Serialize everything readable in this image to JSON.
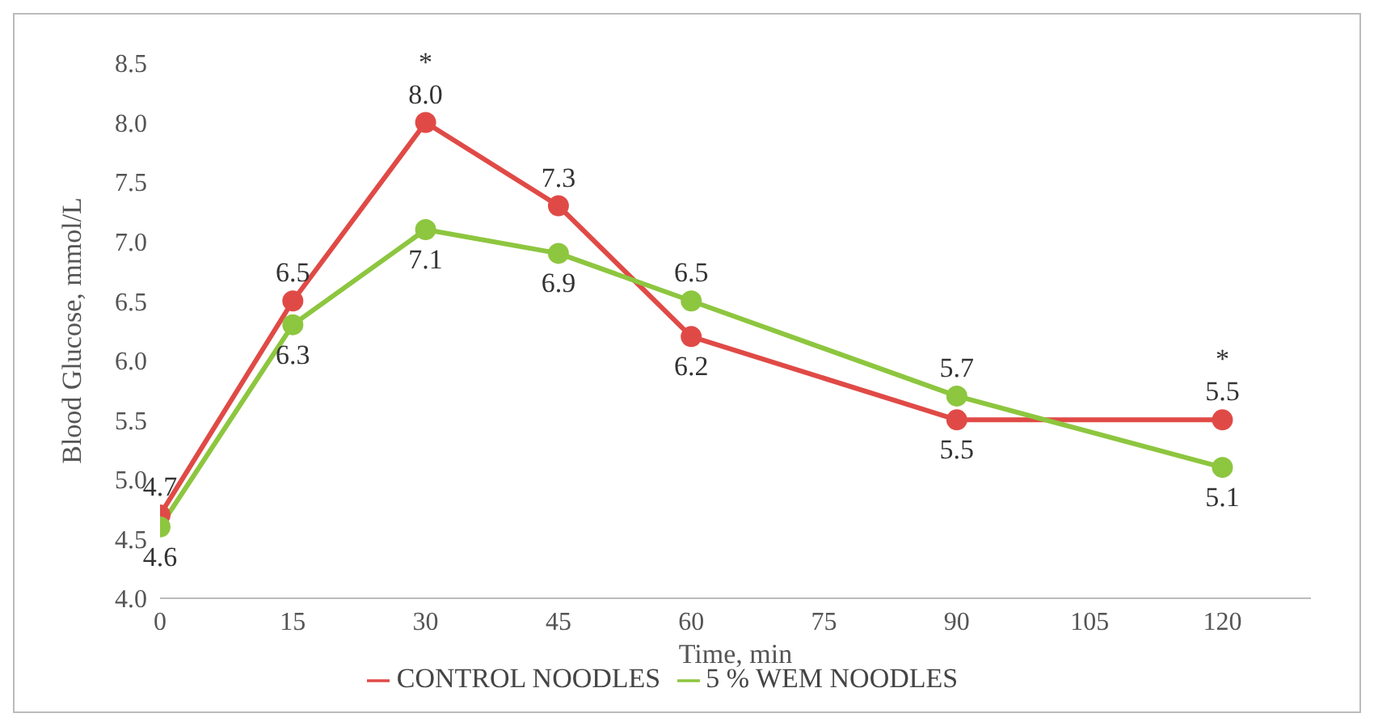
{
  "chart_data": {
    "type": "line",
    "xlabel": "Time, min",
    "ylabel": "Blood Glucose, mmol/L",
    "x": [
      0,
      15,
      30,
      45,
      60,
      90,
      120
    ],
    "series": [
      {
        "name": "CONTROL NOODLES",
        "color": "#e04a46",
        "values": [
          4.7,
          6.5,
          8.0,
          7.3,
          6.2,
          5.5,
          5.5
        ],
        "value_labels": [
          "4.7",
          "6.5",
          "8.0",
          "7.3",
          "6.2",
          "5.5",
          "5.5"
        ]
      },
      {
        "name": "5 % WEM NOODLES",
        "color": "#8dc63f",
        "values": [
          4.6,
          6.3,
          7.1,
          6.9,
          6.5,
          5.7,
          5.1
        ],
        "value_labels": [
          "4.6",
          "6.3",
          "7.1",
          "6.9",
          "6.5",
          "5.7",
          "5.1"
        ]
      }
    ],
    "xlim": [
      0,
      130
    ],
    "xticks": [
      0,
      15,
      30,
      45,
      60,
      75,
      90,
      105,
      120
    ],
    "ylim": [
      4.0,
      8.5
    ],
    "yticks": [
      {
        "value": 4,
        "label": "4.0"
      },
      {
        "value": 4.5,
        "label": "4.5"
      },
      {
        "value": 5,
        "label": "5.0"
      },
      {
        "value": 5.5,
        "label": "5.5"
      },
      {
        "value": 6,
        "label": "6.0"
      },
      {
        "value": 6.5,
        "label": "6.5"
      },
      {
        "value": 7,
        "label": "7.0"
      },
      {
        "value": 7.5,
        "label": "7.5"
      },
      {
        "value": 8,
        "label": "8.0"
      },
      {
        "value": 8.5,
        "label": "8.5"
      }
    ],
    "annotations": [
      {
        "text": "*",
        "x": 30,
        "y": 8.0
      },
      {
        "text": "*",
        "x": 120,
        "y": 5.5
      }
    ],
    "grid": false,
    "legend": "bottom",
    "marker": "circle",
    "line_style": "solid"
  }
}
